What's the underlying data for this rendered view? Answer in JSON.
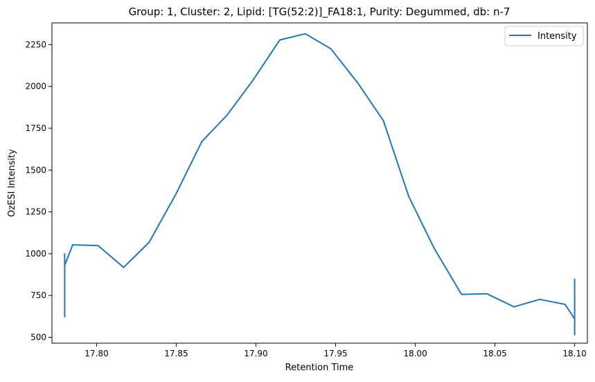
{
  "chart_data": {
    "type": "line",
    "title": "Group: 1, Cluster: 2, Lipid: [TG(52:2)]_FA18:1, Purity: Degummed, db: n-7",
    "xlabel": "Retention Time",
    "ylabel": "OzESI Intensity",
    "xlim": [
      17.772,
      18.108
    ],
    "ylim": [
      465,
      2380
    ],
    "x_ticks": [
      17.8,
      17.85,
      17.9,
      17.95,
      18.0,
      18.05,
      18.1
    ],
    "x_tick_labels": [
      "17.80",
      "17.85",
      "17.90",
      "17.95",
      "18.00",
      "18.05",
      "18.10"
    ],
    "y_ticks": [
      500,
      750,
      1000,
      1250,
      1500,
      1750,
      2000,
      2250
    ],
    "y_tick_labels": [
      "500",
      "750",
      "1000",
      "1250",
      "1500",
      "1750",
      "2000",
      "2250"
    ],
    "grid": false,
    "legend_position": "upper right",
    "series": [
      {
        "name": "Intensity",
        "color": "#1f77b4",
        "x": [
          17.78,
          17.78,
          17.78,
          17.78,
          17.785,
          17.801,
          17.817,
          17.833,
          17.85,
          17.866,
          17.882,
          17.898,
          17.915,
          17.931,
          17.947,
          17.964,
          17.98,
          17.996,
          18.012,
          18.029,
          18.045,
          18.062,
          18.078,
          18.094,
          18.1,
          18.1,
          18.1,
          18.1
        ],
        "y": [
          1003,
          623,
          940,
          930,
          1053,
          1048,
          918,
          1068,
          1360,
          1670,
          1830,
          2035,
          2278,
          2315,
          2225,
          2020,
          1795,
          1340,
          1030,
          757,
          760,
          682,
          727,
          697,
          610,
          847,
          515,
          645
        ]
      }
    ]
  }
}
